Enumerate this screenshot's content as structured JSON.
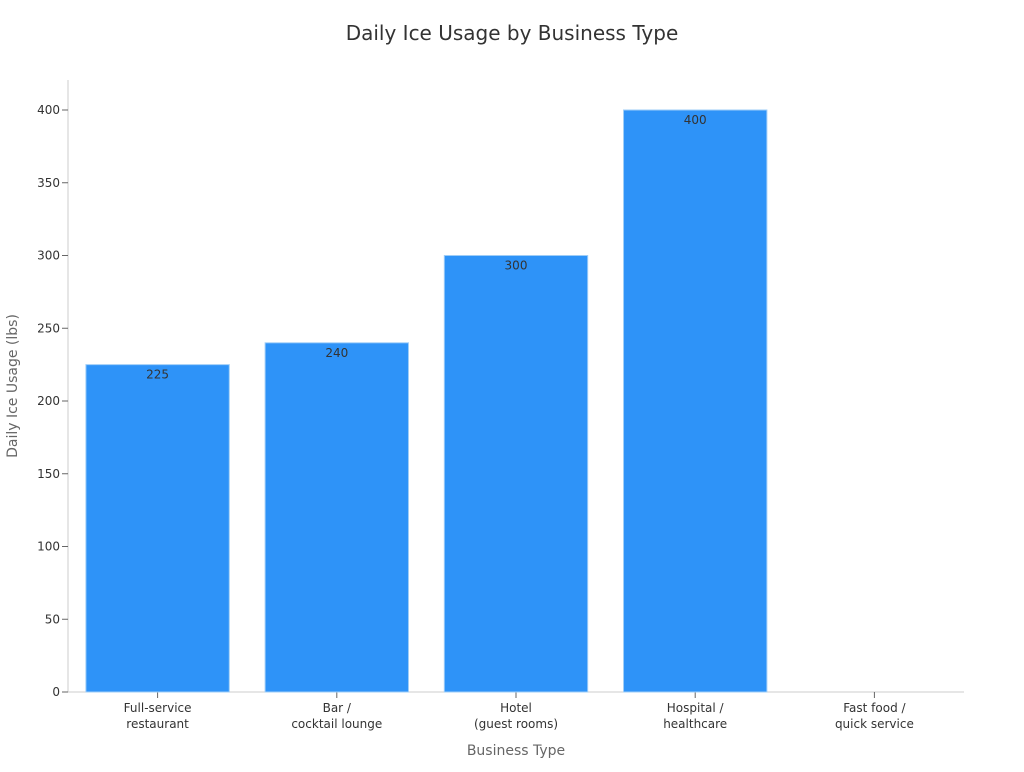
{
  "chart_data": {
    "type": "bar",
    "title": "Daily Ice Usage by Business Type",
    "xlabel": "Business Type",
    "ylabel": "Daily Ice Usage (lbs)",
    "categories": [
      [
        "Full-service",
        "restaurant"
      ],
      [
        "Bar /",
        "cocktail lounge"
      ],
      [
        "Hotel",
        "(guest rooms)"
      ],
      [
        "Hospital /",
        "healthcare"
      ],
      [
        "Fast food /",
        "quick service"
      ]
    ],
    "values": [
      225,
      240,
      300,
      400,
      0
    ],
    "data_labels": [
      "225",
      "240",
      "300",
      "400",
      ""
    ],
    "ylim": [
      0,
      420
    ],
    "yticks": [
      0,
      50,
      100,
      150,
      200,
      250,
      300,
      350,
      400
    ],
    "grid": false,
    "legend": "none",
    "colors": {
      "bar": "#2E93F8",
      "bar_edge": "#9ECDF7",
      "axis": "#CCCCCC",
      "tick": "#666666"
    }
  }
}
